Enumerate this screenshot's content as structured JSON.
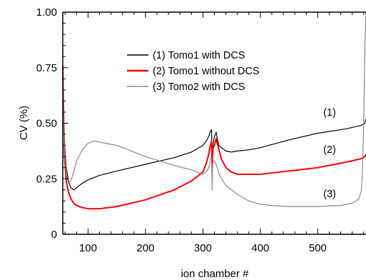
{
  "chart_data": {
    "type": "line",
    "title": "",
    "xlabel": "ion chamber #",
    "ylabel": "CV (%)",
    "xlim": [
      56,
      584
    ],
    "ylim": [
      0,
      1.0
    ],
    "x_ticks": [
      100,
      200,
      300,
      400,
      500
    ],
    "y_ticks": [
      0,
      0.25,
      0.5,
      0.75,
      1.0
    ],
    "x_tick_labels": [
      "100",
      "200",
      "300",
      "400",
      "500"
    ],
    "y_tick_labels": [
      "0",
      "0.25",
      "0.50",
      "0.75",
      "1.00"
    ],
    "grid": false,
    "legend_position": "top-center",
    "series": [
      {
        "name": "(1) Tomo1 with DCS",
        "label": "(1)",
        "color": "#000000",
        "x": [
          56,
          58,
          62,
          66,
          70,
          75,
          80,
          90,
          100,
          120,
          150,
          200,
          250,
          280,
          300,
          306,
          310,
          313,
          315,
          316,
          318,
          320,
          322,
          323,
          325,
          328,
          332,
          340,
          350,
          360,
          380,
          400,
          450,
          500,
          550,
          575,
          582,
          584
        ],
        "y": [
          0.7,
          0.45,
          0.3,
          0.24,
          0.21,
          0.2,
          0.21,
          0.23,
          0.245,
          0.265,
          0.285,
          0.315,
          0.345,
          0.37,
          0.4,
          0.42,
          0.44,
          0.465,
          0.47,
          0.35,
          0.41,
          0.44,
          0.45,
          0.46,
          0.43,
          0.4,
          0.39,
          0.375,
          0.37,
          0.375,
          0.38,
          0.39,
          0.425,
          0.455,
          0.475,
          0.49,
          0.5,
          0.52
        ]
      },
      {
        "name": "(2) Tomo1 without DCS",
        "label": "(2)",
        "color": "#ff0000",
        "x": [
          56,
          57,
          59,
          62,
          66,
          70,
          75,
          80,
          90,
          100,
          120,
          150,
          200,
          250,
          280,
          300,
          306,
          310,
          312,
          314,
          315,
          316,
          317,
          318,
          320,
          322,
          323,
          325,
          328,
          332,
          340,
          350,
          360,
          380,
          400,
          450,
          500,
          550,
          575,
          582,
          584
        ],
        "y": [
          0.76,
          0.6,
          0.35,
          0.24,
          0.19,
          0.16,
          0.14,
          0.13,
          0.12,
          0.115,
          0.115,
          0.125,
          0.155,
          0.2,
          0.24,
          0.28,
          0.32,
          0.36,
          0.39,
          0.41,
          0.42,
          0.3,
          0.36,
          0.39,
          0.4,
          0.42,
          0.43,
          0.41,
          0.38,
          0.34,
          0.3,
          0.28,
          0.27,
          0.27,
          0.27,
          0.285,
          0.3,
          0.325,
          0.34,
          0.35,
          0.36
        ]
      },
      {
        "name": "(3) Tomo2 with DCS",
        "label": "(3)",
        "color": "#888888",
        "x": [
          56,
          58,
          62,
          66,
          70,
          75,
          80,
          90,
          100,
          110,
          130,
          150,
          200,
          250,
          280,
          300,
          306,
          310,
          313,
          315,
          316,
          317,
          318,
          320,
          322,
          325,
          330,
          340,
          360,
          380,
          400,
          420,
          450,
          500,
          540,
          560,
          572,
          576,
          578,
          580,
          582,
          584
        ],
        "y": [
          0.68,
          0.42,
          0.27,
          0.23,
          0.24,
          0.28,
          0.33,
          0.38,
          0.41,
          0.42,
          0.41,
          0.4,
          0.35,
          0.31,
          0.29,
          0.27,
          0.28,
          0.3,
          0.33,
          0.35,
          0.2,
          0.31,
          0.33,
          0.33,
          0.32,
          0.3,
          0.26,
          0.22,
          0.18,
          0.15,
          0.135,
          0.13,
          0.125,
          0.125,
          0.13,
          0.14,
          0.16,
          0.2,
          0.3,
          0.5,
          0.85,
          1.0
        ]
      }
    ],
    "annotations": [
      "(1)",
      "(2)",
      "(3)"
    ]
  }
}
